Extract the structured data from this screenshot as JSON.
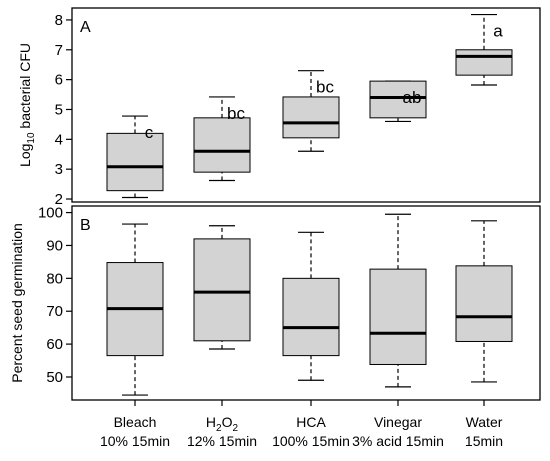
{
  "chart_data": [
    {
      "type": "box",
      "panel_label": "A",
      "ylabel_prefix": "Log",
      "ylabel_sub": "10",
      "ylabel_suffix": " bacterial CFU",
      "ylim": [
        1.9,
        8.4
      ],
      "yticks": [
        2,
        3,
        4,
        5,
        6,
        7,
        8
      ],
      "box_fill": "#d3d3d3",
      "boxes": [
        {
          "category": "Bleach",
          "min": 2.05,
          "q1": 2.28,
          "median": 3.08,
          "q3": 4.2,
          "max": 4.78,
          "letter": "c"
        },
        {
          "category": "H2O2",
          "min": 2.62,
          "q1": 2.9,
          "median": 3.6,
          "q3": 4.72,
          "max": 5.42,
          "letter": "bc"
        },
        {
          "category": "HCA",
          "min": 3.6,
          "q1": 4.05,
          "median": 4.55,
          "q3": 5.42,
          "max": 6.3,
          "letter": "bc"
        },
        {
          "category": "Vinegar",
          "min": 4.6,
          "q1": 4.72,
          "median": 5.4,
          "q3": 5.95,
          "max": 5.95,
          "letter": "ab"
        },
        {
          "category": "Water",
          "min": 5.82,
          "q1": 6.15,
          "median": 6.78,
          "q3": 7.0,
          "max": 8.18,
          "letter": "a"
        }
      ]
    },
    {
      "type": "box",
      "panel_label": "B",
      "ylabel": "Percent seed germination",
      "ylim": [
        43,
        102
      ],
      "yticks": [
        50,
        60,
        70,
        80,
        90,
        100
      ],
      "box_fill": "#d3d3d3",
      "boxes": [
        {
          "category": "Bleach",
          "min": 44.5,
          "q1": 56.5,
          "median": 70.8,
          "q3": 84.8,
          "max": 96.5
        },
        {
          "category": "H2O2",
          "min": 58.5,
          "q1": 61.0,
          "median": 75.8,
          "q3": 92.0,
          "max": 96.0
        },
        {
          "category": "HCA",
          "min": 49.0,
          "q1": 56.5,
          "median": 65.0,
          "q3": 80.0,
          "max": 94.0
        },
        {
          "category": "Vinegar",
          "min": 47.0,
          "q1": 53.8,
          "median": 63.3,
          "q3": 82.8,
          "max": 99.5
        },
        {
          "category": "Water",
          "min": 48.5,
          "q1": 60.8,
          "median": 68.3,
          "q3": 83.8,
          "max": 97.5
        }
      ]
    }
  ],
  "x_categories": [
    {
      "line1": "Bleach",
      "line2": "10% 15min"
    },
    {
      "line1_main": "H",
      "line1_sub": "2",
      "line1_mid": "O",
      "line1_sub2": "2",
      "line2": "12% 15min"
    },
    {
      "line1": "HCA",
      "line2": "100% 15min"
    },
    {
      "line1": "Vinegar",
      "line2": "3% acid 15min"
    },
    {
      "line1": "Water",
      "line2": "15min"
    }
  ]
}
